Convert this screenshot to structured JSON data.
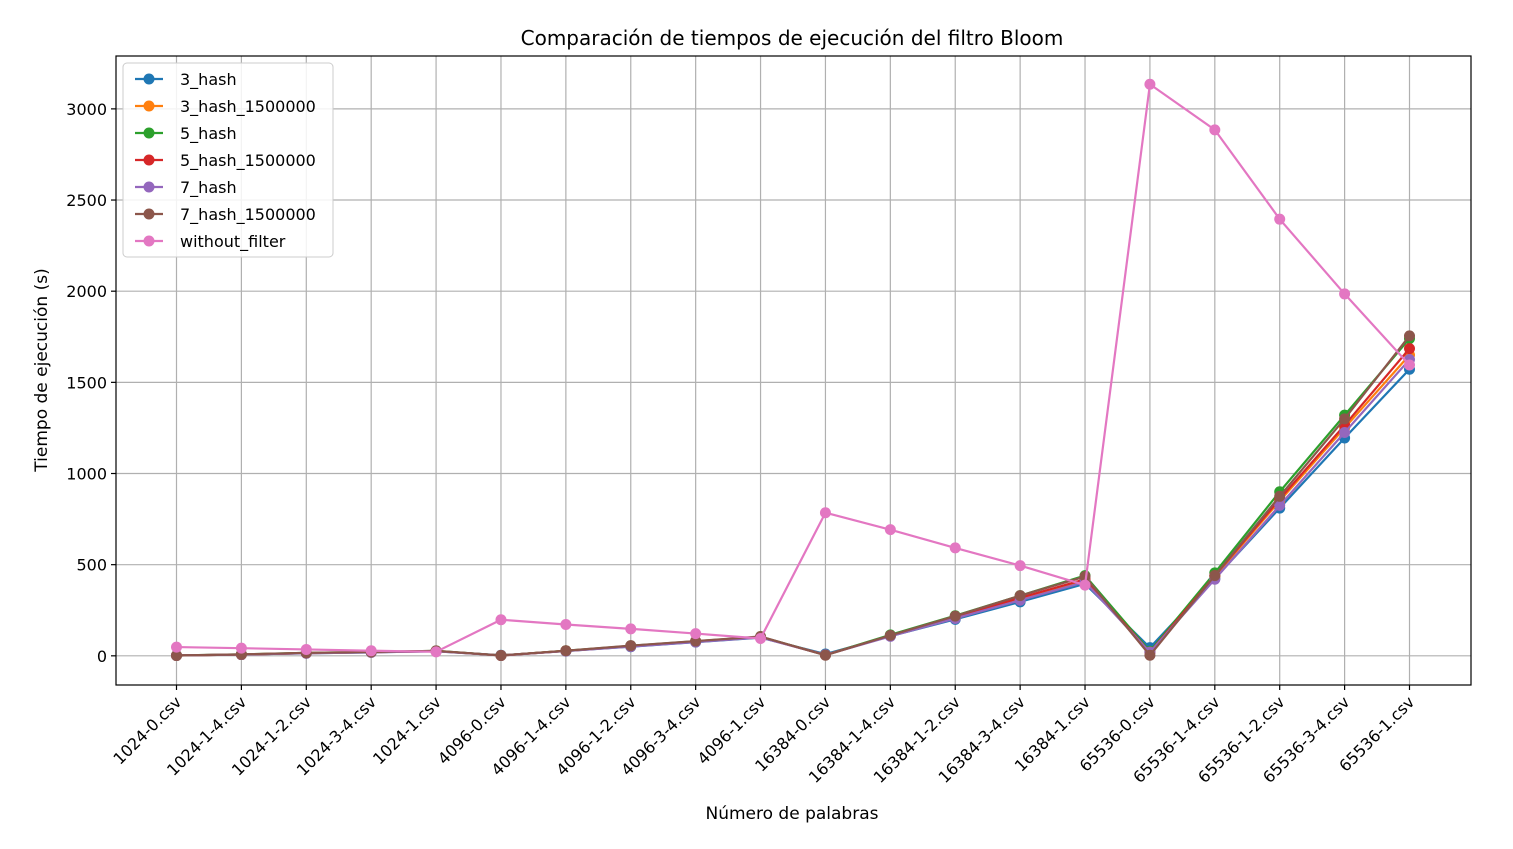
{
  "chart_data": {
    "type": "line",
    "title": "Comparación de tiempos de ejecución del filtro Bloom",
    "xlabel": "Número de palabras",
    "ylabel": "Tiempo de ejecución (s)",
    "categories": [
      "1024-0.csv",
      "1024-1-4.csv",
      "1024-1-2.csv",
      "1024-3-4.csv",
      "1024-1.csv",
      "4096-0.csv",
      "4096-1-4.csv",
      "4096-1-2.csv",
      "4096-3-4.csv",
      "4096-1.csv",
      "16384-0.csv",
      "16384-1-4.csv",
      "16384-1-2.csv",
      "16384-3-4.csv",
      "16384-1.csv",
      "65536-0.csv",
      "65536-1-4.csv",
      "65536-1-2.csv",
      "65536-3-4.csv",
      "65536-1.csv"
    ],
    "ylim": [
      -160,
      3290
    ],
    "yticks": [
      0,
      500,
      1000,
      1500,
      2000,
      2500,
      3000
    ],
    "grid": true,
    "legend_position": "top-left",
    "series": [
      {
        "name": "3_hash",
        "color": "#1f77b4",
        "values": [
          2,
          7,
          14,
          19,
          25,
          3,
          26,
          50,
          75,
          100,
          10,
          108,
          200,
          296,
          395,
          45,
          425,
          810,
          1195,
          1572
        ]
      },
      {
        "name": "3_hash_1500000",
        "color": "#ff7f0e",
        "values": [
          2,
          7,
          15,
          20,
          26,
          2,
          27,
          52,
          77,
          102,
          5,
          110,
          210,
          315,
          415,
          20,
          435,
          850,
          1250,
          1650
        ]
      },
      {
        "name": "5_hash",
        "color": "#2ca02c",
        "values": [
          2,
          8,
          16,
          21,
          27,
          2,
          28,
          55,
          80,
          105,
          5,
          115,
          220,
          330,
          440,
          25,
          455,
          900,
          1320,
          1740
        ]
      },
      {
        "name": "5_hash_1500000",
        "color": "#d62728",
        "values": [
          2,
          7,
          15,
          20,
          26,
          2,
          27,
          53,
          78,
          103,
          5,
          110,
          212,
          318,
          420,
          20,
          440,
          860,
          1265,
          1685
        ]
      },
      {
        "name": "7_hash",
        "color": "#9467bd",
        "values": [
          2,
          7,
          14,
          19,
          25,
          2,
          26,
          51,
          76,
          101,
          5,
          107,
          205,
          305,
          405,
          20,
          420,
          825,
          1225,
          1625
        ]
      },
      {
        "name": "7_hash_1500000",
        "color": "#8c564b",
        "values": [
          2,
          8,
          16,
          21,
          27,
          2,
          28,
          56,
          81,
          106,
          3,
          112,
          218,
          330,
          435,
          3,
          440,
          875,
          1300,
          1755
        ]
      },
      {
        "name": "without_filter",
        "color": "#e377c2",
        "values": [
          48,
          42,
          35,
          28,
          22,
          198,
          172,
          148,
          122,
          95,
          785,
          692,
          592,
          495,
          388,
          3135,
          2885,
          2395,
          1985,
          1595
        ]
      }
    ]
  }
}
